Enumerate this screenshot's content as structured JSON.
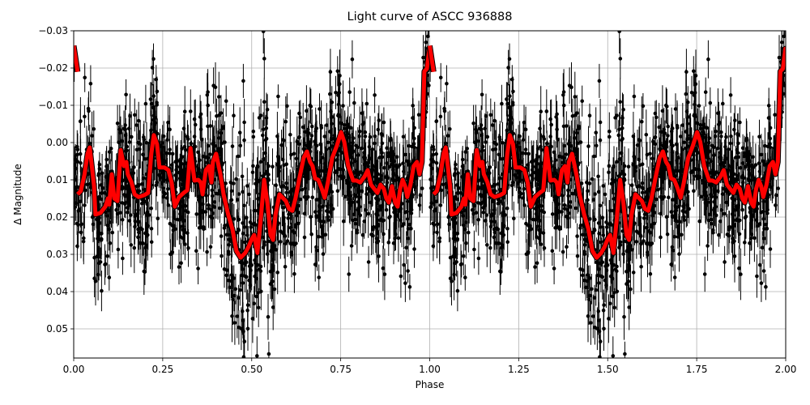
{
  "figure": {
    "title": "Light curve of ASCC 936888",
    "xlabel": "Phase",
    "ylabel": "Δ Magnitude",
    "colors": {
      "points": "#000000",
      "fit": "#ff0000",
      "fit_edge": "#000000",
      "grid": "#b0b0b0"
    }
  },
  "chart_data": {
    "type": "scatter",
    "title": "Light curve of ASCC 936888",
    "xlabel": "Phase",
    "ylabel": "Δ Magnitude",
    "xlim": [
      0.0,
      2.0
    ],
    "ylim": [
      0.0575,
      -0.03
    ],
    "y_inverted": true,
    "grid": true,
    "legend": null,
    "xticks": [
      "0.00",
      "0.25",
      "0.50",
      "0.75",
      "1.00",
      "1.25",
      "1.50",
      "1.75",
      "2.00"
    ],
    "xtick_values": [
      0.0,
      0.25,
      0.5,
      0.75,
      1.0,
      1.25,
      1.5,
      1.75,
      2.0
    ],
    "yticks": [
      "−0.03",
      "−0.02",
      "−0.01",
      "0.00",
      "0.01",
      "0.02",
      "0.03",
      "0.04",
      "0.05"
    ],
    "ytick_values": [
      -0.03,
      -0.02,
      -0.01,
      0.0,
      0.01,
      0.02,
      0.03,
      0.04,
      0.05
    ],
    "series": [
      {
        "name": "Observations (phase-folded, shown twice)",
        "kind": "errorbar-scatter",
        "color": "#000000",
        "description": "Dense cloud of black points with vertical error bars, mostly spanning Δmag −0.02 to 0.05, scatter widest near phase 0.5 and 1.5",
        "error_bar_typical": 0.004,
        "approx_count_per_cycle": 1400
      },
      {
        "name": "Binned fit",
        "kind": "line",
        "color": "#ff0000",
        "linewidth": 5,
        "repeat_period": 1.0,
        "points": [
          [
            0.0,
            -0.026
          ],
          [
            0.011,
            -0.019
          ],
          [
            0.011,
            0.0139
          ],
          [
            0.02,
            0.013
          ],
          [
            0.03,
            0.0087
          ],
          [
            0.039,
            0.003
          ],
          [
            0.045,
            0.0013
          ],
          [
            0.057,
            0.0117
          ],
          [
            0.061,
            0.0193
          ],
          [
            0.075,
            0.0189
          ],
          [
            0.089,
            0.0172
          ],
          [
            0.096,
            0.015
          ],
          [
            0.1,
            0.0167
          ],
          [
            0.107,
            0.0085
          ],
          [
            0.114,
            0.015
          ],
          [
            0.123,
            0.0157
          ],
          [
            0.132,
            0.002
          ],
          [
            0.141,
            0.0063
          ],
          [
            0.148,
            0.0052
          ],
          [
            0.152,
            0.0085
          ],
          [
            0.162,
            0.0106
          ],
          [
            0.171,
            0.0139
          ],
          [
            0.182,
            0.0146
          ],
          [
            0.198,
            0.0141
          ],
          [
            0.209,
            0.0135
          ],
          [
            0.218,
            0.003
          ],
          [
            0.225,
            -0.002
          ],
          [
            0.234,
            0.0004
          ],
          [
            0.241,
            0.0067
          ],
          [
            0.255,
            0.0067
          ],
          [
            0.266,
            0.0074
          ],
          [
            0.275,
            0.0107
          ],
          [
            0.284,
            0.0172
          ],
          [
            0.296,
            0.0146
          ],
          [
            0.309,
            0.0135
          ],
          [
            0.319,
            0.0128
          ],
          [
            0.328,
            0.0015
          ],
          [
            0.339,
            0.0102
          ],
          [
            0.35,
            0.01
          ],
          [
            0.357,
            0.0107
          ],
          [
            0.362,
            0.0139
          ],
          [
            0.371,
            0.0074
          ],
          [
            0.38,
            0.0063
          ],
          [
            0.387,
            0.0107
          ],
          [
            0.391,
            0.0052
          ],
          [
            0.4,
            0.003
          ],
          [
            0.412,
            0.0085
          ],
          [
            0.421,
            0.0139
          ],
          [
            0.434,
            0.0193
          ],
          [
            0.446,
            0.0233
          ],
          [
            0.457,
            0.0291
          ],
          [
            0.469,
            0.0309
          ],
          [
            0.482,
            0.0296
          ],
          [
            0.491,
            0.028
          ],
          [
            0.5,
            0.0259
          ],
          [
            0.507,
            0.0248
          ],
          [
            0.516,
            0.0296
          ],
          [
            0.525,
            0.0211
          ],
          [
            0.535,
            0.01
          ],
          [
            0.544,
            0.0161
          ],
          [
            0.553,
            0.0248
          ],
          [
            0.56,
            0.0261
          ],
          [
            0.567,
            0.0193
          ],
          [
            0.578,
            0.0139
          ],
          [
            0.587,
            0.0148
          ],
          [
            0.596,
            0.0157
          ],
          [
            0.605,
            0.0178
          ],
          [
            0.614,
            0.0183
          ],
          [
            0.623,
            0.015
          ],
          [
            0.634,
            0.0096
          ],
          [
            0.646,
            0.0041
          ],
          [
            0.655,
            0.0024
          ],
          [
            0.664,
            0.0052
          ],
          [
            0.671,
            0.0063
          ],
          [
            0.678,
            0.0096
          ],
          [
            0.687,
            0.01
          ],
          [
            0.696,
            0.0122
          ],
          [
            0.705,
            0.0148
          ],
          [
            0.714,
            0.0107
          ],
          [
            0.726,
            0.0041
          ],
          [
            0.739,
            0.0009
          ],
          [
            0.751,
            -0.0028
          ],
          [
            0.76,
            -0.0002
          ],
          [
            0.771,
            0.0063
          ],
          [
            0.785,
            0.0102
          ],
          [
            0.794,
            0.0102
          ],
          [
            0.805,
            0.0107
          ],
          [
            0.817,
            0.0091
          ],
          [
            0.826,
            0.0074
          ],
          [
            0.835,
            0.0113
          ],
          [
            0.844,
            0.0124
          ],
          [
            0.853,
            0.0135
          ],
          [
            0.862,
            0.0113
          ],
          [
            0.871,
            0.0124
          ],
          [
            0.878,
            0.015
          ],
          [
            0.885,
            0.0161
          ],
          [
            0.894,
            0.0117
          ],
          [
            0.903,
            0.0161
          ],
          [
            0.91,
            0.0172
          ],
          [
            0.917,
            0.0124
          ],
          [
            0.924,
            0.01
          ],
          [
            0.931,
            0.0117
          ],
          [
            0.937,
            0.0146
          ],
          [
            0.946,
            0.0113
          ],
          [
            0.955,
            0.0063
          ],
          [
            0.964,
            0.0052
          ],
          [
            0.971,
            0.0085
          ],
          [
            0.978,
            0.0052
          ],
          [
            0.985,
            -0.0191
          ],
          [
            0.992,
            -0.0198
          ],
          [
            0.999,
            -0.0252
          ],
          [
            1.0,
            -0.0252
          ]
        ]
      }
    ]
  }
}
